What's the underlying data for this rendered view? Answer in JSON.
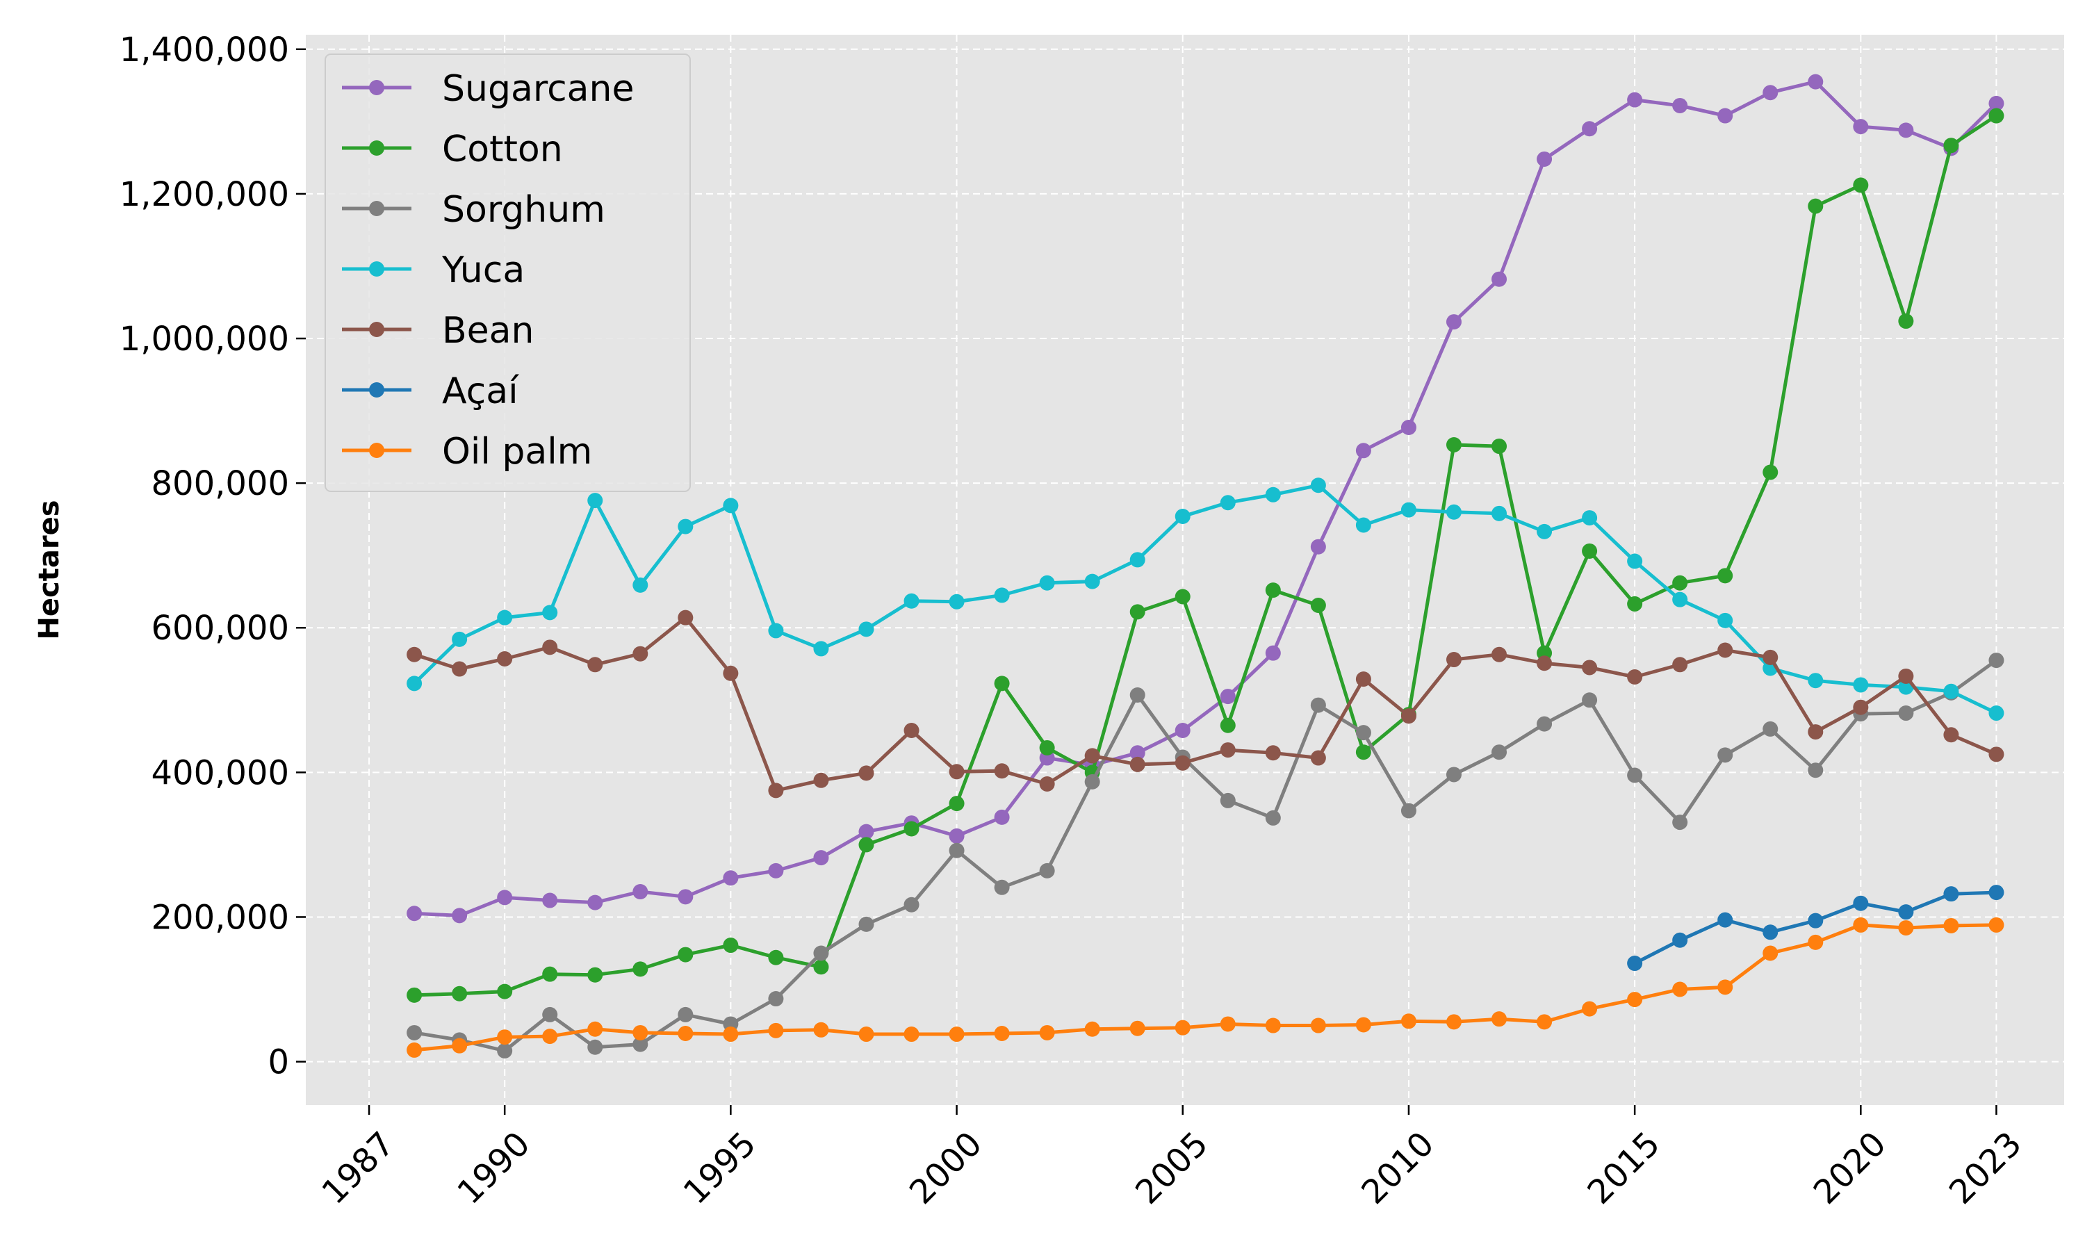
{
  "chart_data": {
    "type": "line",
    "title": "",
    "xlabel": "",
    "ylabel": "Hectares",
    "xlim": [
      1985.6,
      2024.5
    ],
    "ylim": [
      -60000,
      1420000
    ],
    "xticks": [
      1987,
      1990,
      1995,
      2000,
      2005,
      2010,
      2015,
      2020,
      2023
    ],
    "xtick_labels": [
      "1987",
      "1990",
      "1995",
      "2000",
      "2005",
      "2010",
      "2015",
      "2020",
      "2023"
    ],
    "yticks": [
      0,
      200000,
      400000,
      600000,
      800000,
      1000000,
      1200000,
      1400000
    ],
    "ytick_labels": [
      "0",
      "200,000",
      "400,000",
      "600,000",
      "800,000",
      "1,000,000",
      "1,200,000",
      "1,400,000"
    ],
    "grid": true,
    "legend_position": "top-left",
    "background_color": "#e5e5e5",
    "series": [
      {
        "name": "Sugarcane",
        "color": "#9467bd",
        "x": [
          1988,
          1989,
          1990,
          1991,
          1992,
          1993,
          1994,
          1995,
          1996,
          1997,
          1998,
          1999,
          2000,
          2001,
          2002,
          2003,
          2004,
          2005,
          2006,
          2007,
          2008,
          2009,
          2010,
          2011,
          2012,
          2013,
          2014,
          2015,
          2016,
          2017,
          2018,
          2019,
          2020,
          2021,
          2022,
          2023
        ],
        "y": [
          205000,
          202000,
          227000,
          223000,
          220000,
          235000,
          228000,
          254000,
          264000,
          282000,
          318000,
          330000,
          312000,
          338000,
          420000,
          410000,
          427000,
          458000,
          505000,
          565000,
          712000,
          845000,
          877000,
          1023000,
          1082000,
          1248000,
          1290000,
          1330000,
          1322000,
          1308000,
          1340000,
          1355000,
          1293000,
          1288000,
          1263000,
          1325000
        ]
      },
      {
        "name": "Cotton",
        "color": "#2ca02c",
        "x": [
          1988,
          1989,
          1990,
          1991,
          1992,
          1993,
          1994,
          1995,
          1996,
          1997,
          1998,
          1999,
          2000,
          2001,
          2002,
          2003,
          2004,
          2005,
          2006,
          2007,
          2008,
          2009,
          2010,
          2011,
          2012,
          2013,
          2014,
          2015,
          2016,
          2017,
          2018,
          2019,
          2020,
          2021,
          2022,
          2023
        ],
        "y": [
          92000,
          94000,
          97000,
          121000,
          120000,
          128000,
          148000,
          161000,
          144000,
          131000,
          300000,
          322000,
          357000,
          523000,
          434000,
          400000,
          622000,
          643000,
          465000,
          652000,
          631000,
          428000,
          480000,
          853000,
          851000,
          565000,
          706000,
          633000,
          662000,
          672000,
          815000,
          1183000,
          1212000,
          1024000,
          1267000,
          1308000
        ]
      },
      {
        "name": "Sorghum",
        "color": "#7f7f7f",
        "x": [
          1988,
          1989,
          1990,
          1991,
          1992,
          1993,
          1994,
          1995,
          1996,
          1997,
          1998,
          1999,
          2000,
          2001,
          2002,
          2003,
          2004,
          2005,
          2006,
          2007,
          2008,
          2009,
          2010,
          2011,
          2012,
          2013,
          2014,
          2015,
          2016,
          2017,
          2018,
          2019,
          2020,
          2021,
          2022,
          2023
        ],
        "y": [
          40000,
          30000,
          15000,
          65000,
          20000,
          24000,
          65000,
          52000,
          87000,
          150000,
          190000,
          217000,
          292000,
          241000,
          264000,
          387000,
          507000,
          421000,
          361000,
          337000,
          493000,
          455000,
          347000,
          397000,
          428000,
          467000,
          500000,
          396000,
          331000,
          424000,
          460000,
          403000,
          481000,
          482000,
          510000,
          555000
        ]
      },
      {
        "name": "Yuca",
        "color": "#17becf",
        "x": [
          1988,
          1989,
          1990,
          1991,
          1992,
          1993,
          1994,
          1995,
          1996,
          1997,
          1998,
          1999,
          2000,
          2001,
          2002,
          2003,
          2004,
          2005,
          2006,
          2007,
          2008,
          2009,
          2010,
          2011,
          2012,
          2013,
          2014,
          2015,
          2016,
          2017,
          2018,
          2019,
          2020,
          2021,
          2022,
          2023
        ],
        "y": [
          523000,
          584000,
          614000,
          621000,
          776000,
          659000,
          740000,
          769000,
          596000,
          571000,
          598000,
          637000,
          636000,
          645000,
          662000,
          664000,
          694000,
          754000,
          773000,
          784000,
          797000,
          742000,
          763000,
          760000,
          758000,
          733000,
          752000,
          692000,
          639000,
          610000,
          544000,
          527000,
          521000,
          518000,
          512000,
          482000
        ]
      },
      {
        "name": "Bean",
        "color": "#8c564b",
        "x": [
          1988,
          1989,
          1990,
          1991,
          1992,
          1993,
          1994,
          1995,
          1996,
          1997,
          1998,
          1999,
          2000,
          2001,
          2002,
          2003,
          2004,
          2005,
          2006,
          2007,
          2008,
          2009,
          2010,
          2011,
          2012,
          2013,
          2014,
          2015,
          2016,
          2017,
          2018,
          2019,
          2020,
          2021,
          2022,
          2023
        ],
        "y": [
          563000,
          543000,
          557000,
          573000,
          549000,
          564000,
          614000,
          537000,
          375000,
          389000,
          399000,
          458000,
          401000,
          402000,
          384000,
          423000,
          411000,
          413000,
          431000,
          427000,
          420000,
          529000,
          478000,
          556000,
          563000,
          551000,
          545000,
          532000,
          549000,
          569000,
          559000,
          456000,
          490000,
          533000,
          452000,
          425000
        ]
      },
      {
        "name": "Açaí",
        "color": "#1f77b4",
        "x": [
          2015,
          2016,
          2017,
          2018,
          2019,
          2020,
          2021,
          2022,
          2023
        ],
        "y": [
          136000,
          168000,
          196000,
          179000,
          195000,
          219000,
          207000,
          232000,
          234000
        ]
      },
      {
        "name": "Oil palm",
        "color": "#ff7f0e",
        "x": [
          1988,
          1989,
          1990,
          1991,
          1992,
          1993,
          1994,
          1995,
          1996,
          1997,
          1998,
          1999,
          2000,
          2001,
          2002,
          2003,
          2004,
          2005,
          2006,
          2007,
          2008,
          2009,
          2010,
          2011,
          2012,
          2013,
          2014,
          2015,
          2016,
          2017,
          2018,
          2019,
          2020,
          2021,
          2022,
          2023
        ],
        "y": [
          16000,
          22000,
          34000,
          35000,
          45000,
          40000,
          39000,
          38000,
          43000,
          44000,
          38000,
          38000,
          38000,
          39000,
          40000,
          45000,
          46000,
          47000,
          52000,
          50000,
          50000,
          51000,
          56000,
          55000,
          59000,
          55000,
          73000,
          86000,
          100000,
          103000,
          150000,
          165000,
          189000,
          185000,
          188000,
          189000
        ]
      }
    ]
  }
}
